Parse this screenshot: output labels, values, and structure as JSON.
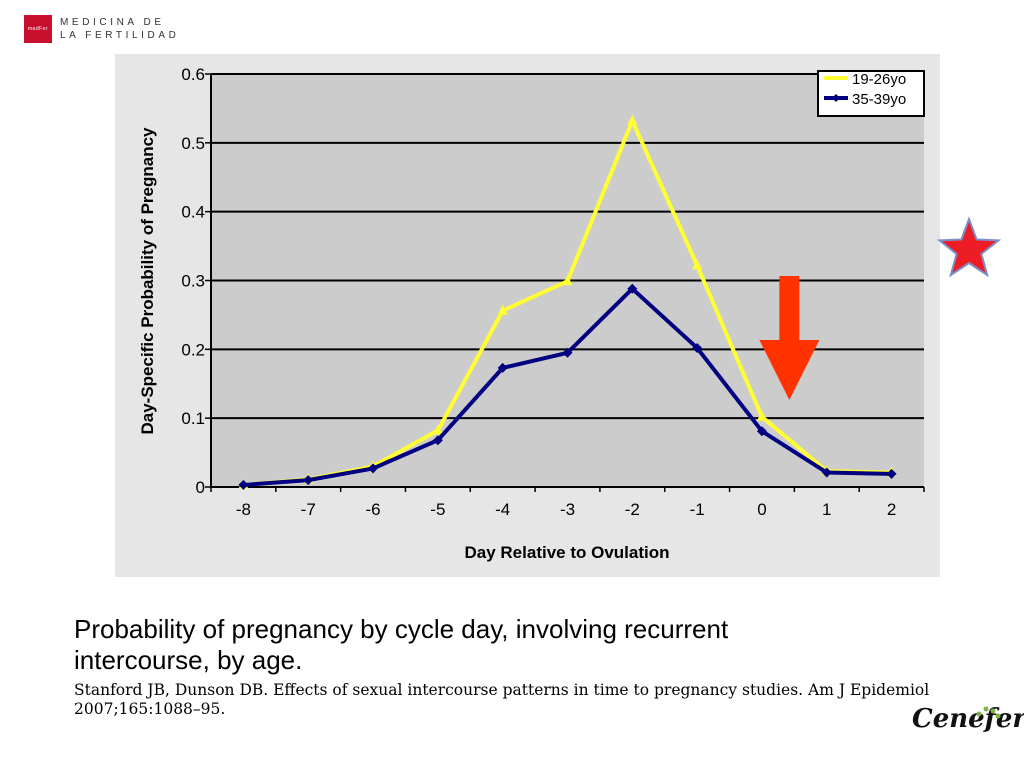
{
  "brand": {
    "mark_text": "madFer",
    "line1": "MEDICINA DE",
    "line2": "LA FERTILIDAD"
  },
  "slide": {
    "title": "Probability of pregnancy by cycle day, involving recurrent intercourse, by age.",
    "citation": "Stanford JB, Dunson DB. Effects of sexual intercourse patterns in time to pregnancy studies. Am J Epidemiol 2007;165:1088–95.",
    "logo_text": "Cenefer"
  },
  "annotations": {
    "arrow_color": "#ff3300",
    "star_color": "#ee1c25",
    "arrow_day": 0.5
  },
  "chart_data": {
    "type": "line",
    "title": "",
    "xlabel": "Day Relative to Ovulation",
    "ylabel": "Day-Specific Probability of Pregnancy",
    "x": [
      -8,
      -7,
      -6,
      -5,
      -4,
      -3,
      -2,
      -1,
      0,
      1,
      2
    ],
    "x_ticks": [
      "-8",
      "-7",
      "-6",
      "-5",
      "-4",
      "-3",
      "-2",
      "-1",
      "0",
      "1",
      "2"
    ],
    "ylim": [
      0,
      0.6
    ],
    "y_ticks": [
      "0",
      "0.1",
      "0.2",
      "0.3",
      "0.4",
      "0.5",
      "0.6"
    ],
    "grid": true,
    "legend_position": "top-right",
    "plot_background": "#cccccc",
    "series": [
      {
        "name": "19-26yo",
        "color": "#ffff33",
        "marker": "triangle",
        "values": [
          0.003,
          0.011,
          0.03,
          0.082,
          0.256,
          0.299,
          0.532,
          0.322,
          0.102,
          0.023,
          0.021
        ]
      },
      {
        "name": "35-39yo",
        "color": "#000080",
        "marker": "diamond",
        "values": [
          0.003,
          0.01,
          0.027,
          0.068,
          0.173,
          0.195,
          0.288,
          0.202,
          0.081,
          0.021,
          0.019
        ]
      }
    ]
  }
}
